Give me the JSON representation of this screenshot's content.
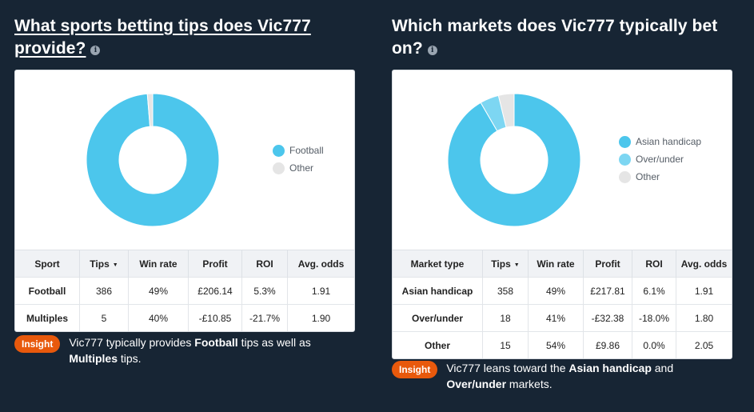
{
  "left": {
    "title": "What sports betting tips does Vic777 provide?",
    "chart_data": {
      "type": "pie",
      "categories": [
        "Football",
        "Other"
      ],
      "values": [
        98.7,
        1.3
      ],
      "colors": [
        "#4cc6ec",
        "#e5e5e5"
      ]
    },
    "legend": [
      {
        "label": "Football",
        "color": "#4cc6ec"
      },
      {
        "label": "Other",
        "color": "#e5e5e5"
      }
    ],
    "columns": [
      "Sport",
      "Tips",
      "Win rate",
      "Profit",
      "ROI",
      "Avg. odds"
    ],
    "rows": [
      [
        "Football",
        "386",
        "49%",
        "£206.14",
        "5.3%",
        "1.91"
      ],
      [
        "Multiples",
        "5",
        "40%",
        "-£10.85",
        "-21.7%",
        "1.90"
      ]
    ],
    "insight": {
      "badge": "Insight",
      "parts": [
        "Vic777 typically provides ",
        "Football",
        " tips as well as ",
        "Multiples",
        " tips."
      ]
    }
  },
  "right": {
    "title": "Which markets does Vic777 typically bet on?",
    "chart_data": {
      "type": "pie",
      "categories": [
        "Asian handicap",
        "Over/under",
        "Other"
      ],
      "values": [
        91.6,
        4.6,
        3.8
      ],
      "colors": [
        "#4cc6ec",
        "#7dd6f2",
        "#e5e5e5"
      ]
    },
    "legend": [
      {
        "label": "Asian handicap",
        "color": "#4cc6ec"
      },
      {
        "label": "Over/under",
        "color": "#7dd6f2"
      },
      {
        "label": "Other",
        "color": "#e5e5e5"
      }
    ],
    "columns": [
      "Market type",
      "Tips",
      "Win rate",
      "Profit",
      "ROI",
      "Avg. odds"
    ],
    "rows": [
      [
        "Asian handicap",
        "358",
        "49%",
        "£217.81",
        "6.1%",
        "1.91"
      ],
      [
        "Over/under",
        "18",
        "41%",
        "-£32.38",
        "-18.0%",
        "1.80"
      ],
      [
        "Other",
        "15",
        "54%",
        "£9.86",
        "0.0%",
        "2.05"
      ]
    ],
    "insight": {
      "badge": "Insight",
      "parts": [
        "Vic777 leans toward the ",
        "Asian handicap",
        " and ",
        "Over/under",
        " markets."
      ]
    }
  },
  "icons": {
    "info": "info-icon",
    "sort": "sort-desc-icon"
  },
  "info_glyph": "i",
  "sort_glyph": "▼"
}
